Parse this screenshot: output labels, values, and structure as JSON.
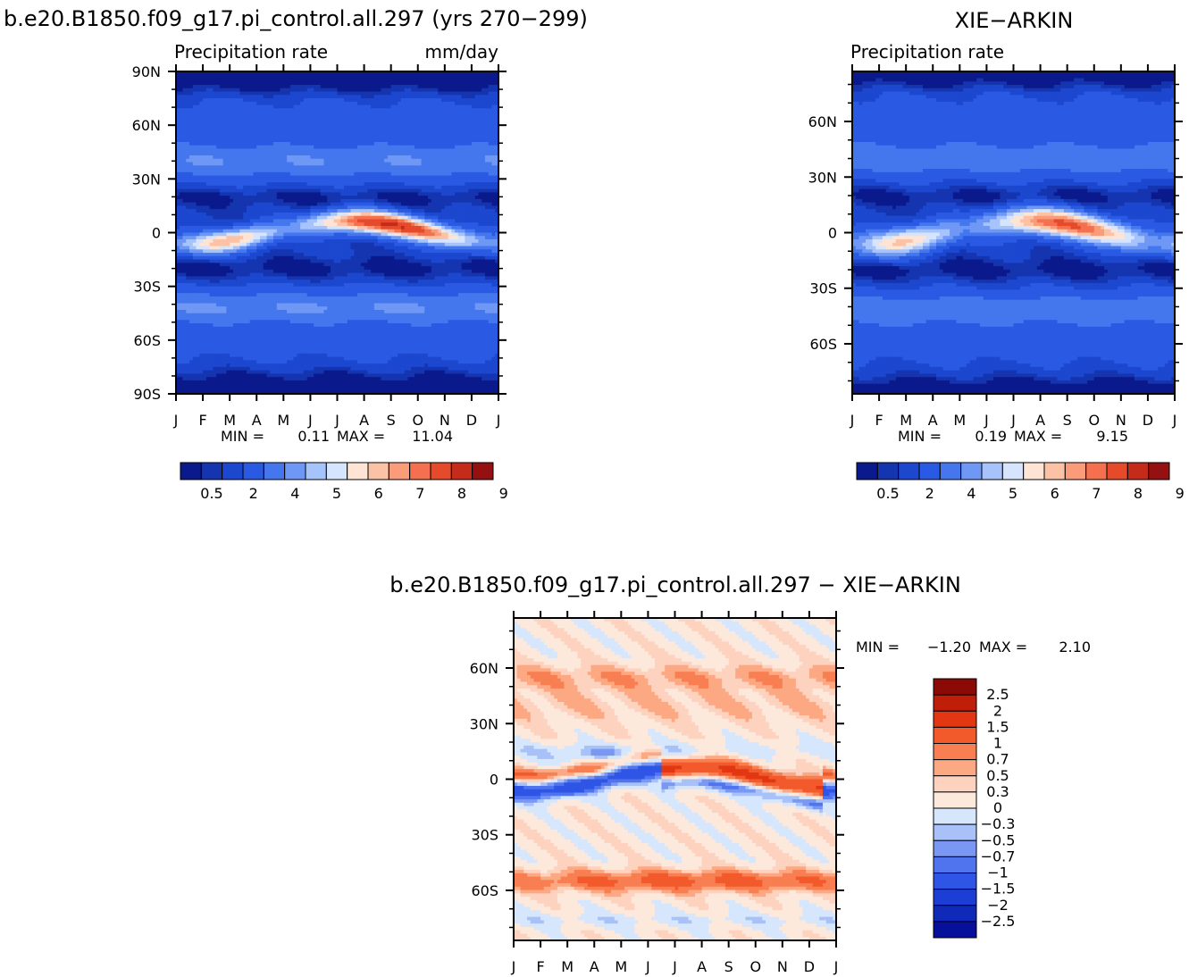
{
  "chart_data": [
    {
      "type": "heatmap",
      "id": "model",
      "case_title": "b.e20.B1850.f09_g17.pi_control.all.297 (yrs 270−299)",
      "left_title": "Precipitation rate",
      "right_title": "mm/day",
      "min_label": "MIN =",
      "min_value": "0.11",
      "max_label": "MAX =",
      "max_value": "11.04",
      "x_tick_labels": [
        "J",
        "F",
        "M",
        "A",
        "M",
        "J",
        "J",
        "A",
        "S",
        "O",
        "N",
        "D",
        "J"
      ],
      "y_tick_labels": [
        "90N",
        "60N",
        "30N",
        "0",
        "30S",
        "60S",
        "90S"
      ],
      "y_tick_values": [
        90,
        60,
        30,
        0,
        -30,
        -60,
        -90
      ],
      "ylim": [
        -90,
        90
      ],
      "colorbar_labels": [
        "0.5",
        "2",
        "4",
        "5",
        "6",
        "7",
        "8",
        "9"
      ],
      "colorbar_levels": [
        0.2,
        0.5,
        1,
        2,
        3,
        4,
        5,
        6,
        7,
        8,
        9,
        10,
        12,
        14
      ],
      "itcz": {
        "nh_peak": 11.0,
        "sh_peak": 6.5,
        "nh_peak_month": 8,
        "sh_peak_month": 2
      }
    },
    {
      "type": "heatmap",
      "id": "obs",
      "case_title": "XIE−ARKIN",
      "left_title": "Precipitation rate",
      "min_label": "MIN =",
      "min_value": "0.19",
      "max_label": "MAX =",
      "max_value": "9.15",
      "x_tick_labels": [
        "J",
        "F",
        "M",
        "A",
        "M",
        "J",
        "J",
        "A",
        "S",
        "O",
        "N",
        "D",
        "J"
      ],
      "y_tick_labels": [
        "60N",
        "30N",
        "0",
        "30S",
        "60S"
      ],
      "y_tick_values": [
        60,
        30,
        0,
        -30,
        -60
      ],
      "ylim": [
        -87,
        87
      ],
      "colorbar_labels": [
        "0.5",
        "2",
        "4",
        "5",
        "6",
        "7",
        "8",
        "9"
      ],
      "colorbar_levels": [
        0.2,
        0.5,
        1,
        2,
        3,
        4,
        5,
        6,
        7,
        8,
        9,
        10,
        12,
        14
      ],
      "itcz": {
        "nh_peak": 9.0,
        "sh_peak": 6.0,
        "nh_peak_month": 8,
        "sh_peak_month": 2
      }
    },
    {
      "type": "heatmap",
      "id": "diff",
      "case_title": "b.e20.B1850.f09_g17.pi_control.all.297 − XIE−ARKIN",
      "min_label": "MIN =",
      "min_value": "−1.20",
      "max_label": "MAX =",
      "max_value": "2.10",
      "x_tick_labels": [
        "J",
        "F",
        "M",
        "A",
        "M",
        "J",
        "J",
        "A",
        "S",
        "O",
        "N",
        "D",
        "J"
      ],
      "y_tick_labels": [
        "60N",
        "30N",
        "0",
        "30S",
        "60S"
      ],
      "y_tick_values": [
        60,
        30,
        0,
        -30,
        -60
      ],
      "ylim": [
        -87,
        87
      ],
      "colorbar_labels": [
        "2.5",
        "2",
        "1.5",
        "1",
        "0.7",
        "0.5",
        "0.3",
        "0",
        "−0.3",
        "−0.5",
        "−0.7",
        "−1",
        "−1.5",
        "−2",
        "−2.5"
      ],
      "colorbar_levels": [
        -2.5,
        -2,
        -1.5,
        -1,
        -0.7,
        -0.5,
        -0.3,
        0,
        0.3,
        0.5,
        0.7,
        1,
        1.5,
        2,
        2.5
      ]
    }
  ],
  "palettes": {
    "sequential": [
      "#0a1a8c",
      "#1535b0",
      "#1c47cf",
      "#2a5ae3",
      "#4477ee",
      "#6f98f6",
      "#a6c4fb",
      "#d6e4fd",
      "#fde4d4",
      "#fcc2a6",
      "#fa9b7a",
      "#f4704e",
      "#e54a2a",
      "#c52a1a",
      "#951010"
    ],
    "diverging": [
      "#06109a",
      "#0f2ab8",
      "#1c3ed4",
      "#2f55e6",
      "#4f74ee",
      "#7a98f3",
      "#a8c1f8",
      "#d6e6fc",
      "#fde9dc",
      "#fdd2bf",
      "#fca882",
      "#f87f52",
      "#f25a2c",
      "#e23712",
      "#bf1e08",
      "#8c0a06"
    ]
  }
}
